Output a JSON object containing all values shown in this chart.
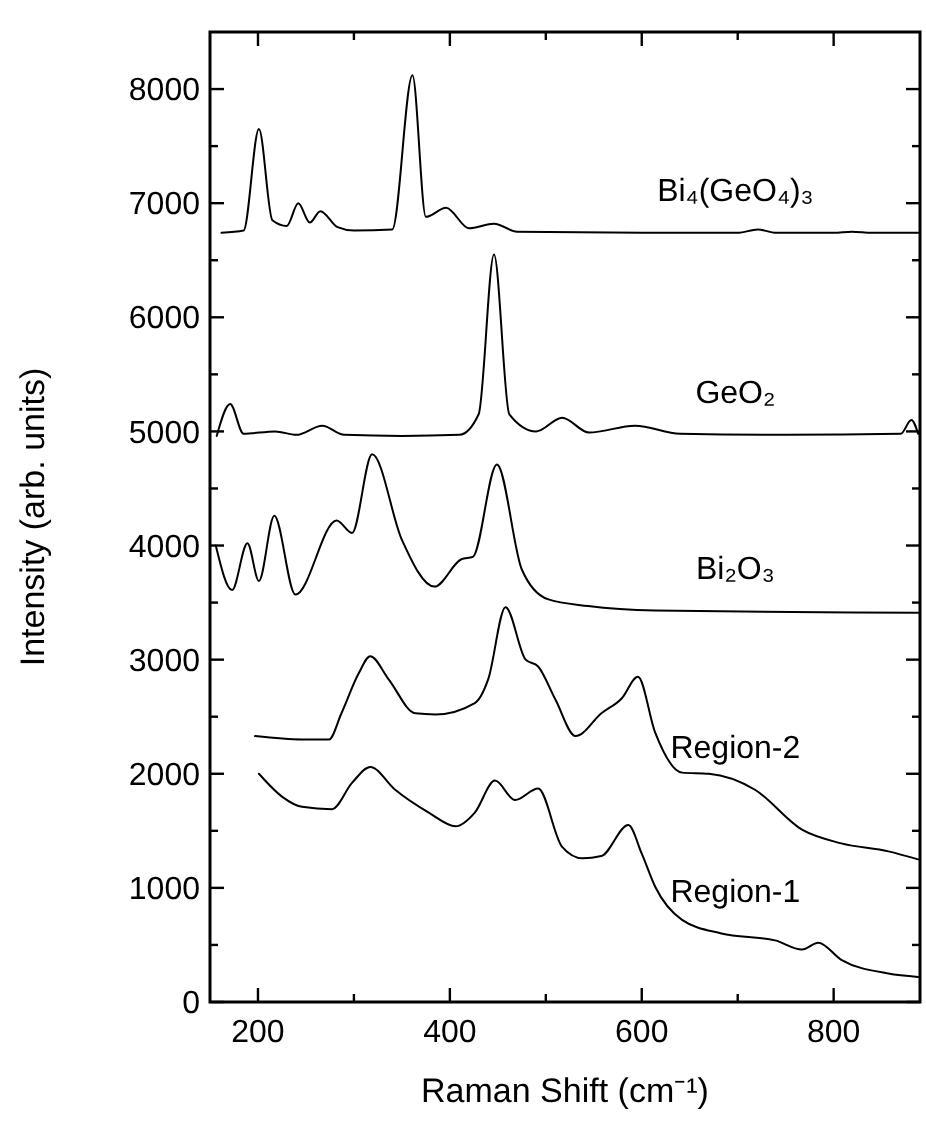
{
  "chart_data": {
    "type": "line",
    "xlabel": "Raman Shift (cm⁻¹)",
    "ylabel": "Intensity (arb. units)",
    "xlim": [
      150,
      890
    ],
    "ylim": [
      0,
      8500
    ],
    "xticks": [
      200,
      {
        "value": 300,
        "label": null
      },
      400,
      {
        "value": 500,
        "label": null
      },
      600,
      {
        "value": 700,
        "label": null
      },
      800
    ],
    "yticks": [
      0,
      {
        "value": 500,
        "label": null
      },
      1000,
      {
        "value": 1500,
        "label": null
      },
      2000,
      {
        "value": 2500,
        "label": null
      },
      3000,
      {
        "value": 3500,
        "label": null
      },
      4000,
      {
        "value": 4500,
        "label": null
      },
      5000,
      {
        "value": 5500,
        "label": null
      },
      6000,
      {
        "value": 6500,
        "label": null
      },
      7000,
      {
        "value": 7500,
        "label": null
      },
      8000
    ],
    "grid": false,
    "marker": "none",
    "line_style": "solid",
    "series": [
      {
        "name": "Bi₄(GeO₄)₃",
        "color": "#000000",
        "x": [
          162,
          185,
          201,
          215,
          230,
          242,
          254,
          265,
          283,
          300,
          340,
          361,
          375,
          396,
          420,
          446,
          470,
          600,
          700,
          721,
          740,
          800,
          819,
          840,
          888
        ],
        "values": [
          6740,
          6760,
          7650,
          6850,
          6800,
          7000,
          6830,
          6930,
          6790,
          6760,
          6770,
          8120,
          6880,
          6960,
          6780,
          6820,
          6750,
          6740,
          6740,
          6770,
          6740,
          6740,
          6750,
          6740,
          6740
        ]
      },
      {
        "name": "GeO₂",
        "color": "#000000",
        "x": [
          157,
          171,
          185,
          218,
          240,
          267,
          290,
          350,
          410,
          430,
          446,
          462,
          490,
          517,
          545,
          593,
          640,
          750,
          870,
          881,
          888
        ],
        "values": [
          4960,
          5240,
          4980,
          5000,
          4970,
          5050,
          4970,
          4960,
          4970,
          5150,
          6550,
          5150,
          5000,
          5120,
          4990,
          5050,
          4980,
          4970,
          4980,
          5100,
          4980
        ]
      },
      {
        "name": "Bi₂O₃",
        "color": "#000000",
        "x": [
          156,
          173,
          189,
          201,
          217,
          239,
          282,
          298,
          319,
          350,
          384,
          412,
          424,
          449,
          475,
          502,
          544,
          614,
          888
        ],
        "values": [
          4000,
          3610,
          4020,
          3690,
          4260,
          3570,
          4220,
          4110,
          4800,
          4050,
          3640,
          3880,
          3900,
          4710,
          3790,
          3530,
          3470,
          3430,
          3410
        ]
      },
      {
        "name": "Region-2",
        "color": "#000000",
        "x": [
          197,
          246,
          274,
          287,
          305,
          317,
          336,
          364,
          385,
          426,
          440,
          458,
          479,
          492,
          510,
          531,
          558,
          579,
          596,
          614,
          642,
          670,
          718,
          767,
          808,
          857,
          888
        ],
        "values": [
          2330,
          2300,
          2300,
          2530,
          2880,
          3030,
          2830,
          2530,
          2520,
          2620,
          2830,
          3460,
          3000,
          2940,
          2650,
          2330,
          2530,
          2660,
          2850,
          2360,
          2010,
          2000,
          1860,
          1510,
          1390,
          1320,
          1250
        ]
      },
      {
        "name": "Region-1",
        "color": "#000000",
        "x": [
          201,
          225,
          246,
          277,
          298,
          317,
          343,
          378,
          406,
          426,
          447,
          468,
          492,
          517,
          538,
          558,
          586,
          600,
          614,
          642,
          683,
          739,
          767,
          784,
          808,
          857,
          888
        ],
        "values": [
          2000,
          1800,
          1710,
          1690,
          1920,
          2060,
          1860,
          1660,
          1540,
          1660,
          1940,
          1770,
          1870,
          1360,
          1260,
          1280,
          1550,
          1300,
          1010,
          720,
          600,
          540,
          460,
          520,
          370,
          250,
          220
        ]
      }
    ]
  }
}
